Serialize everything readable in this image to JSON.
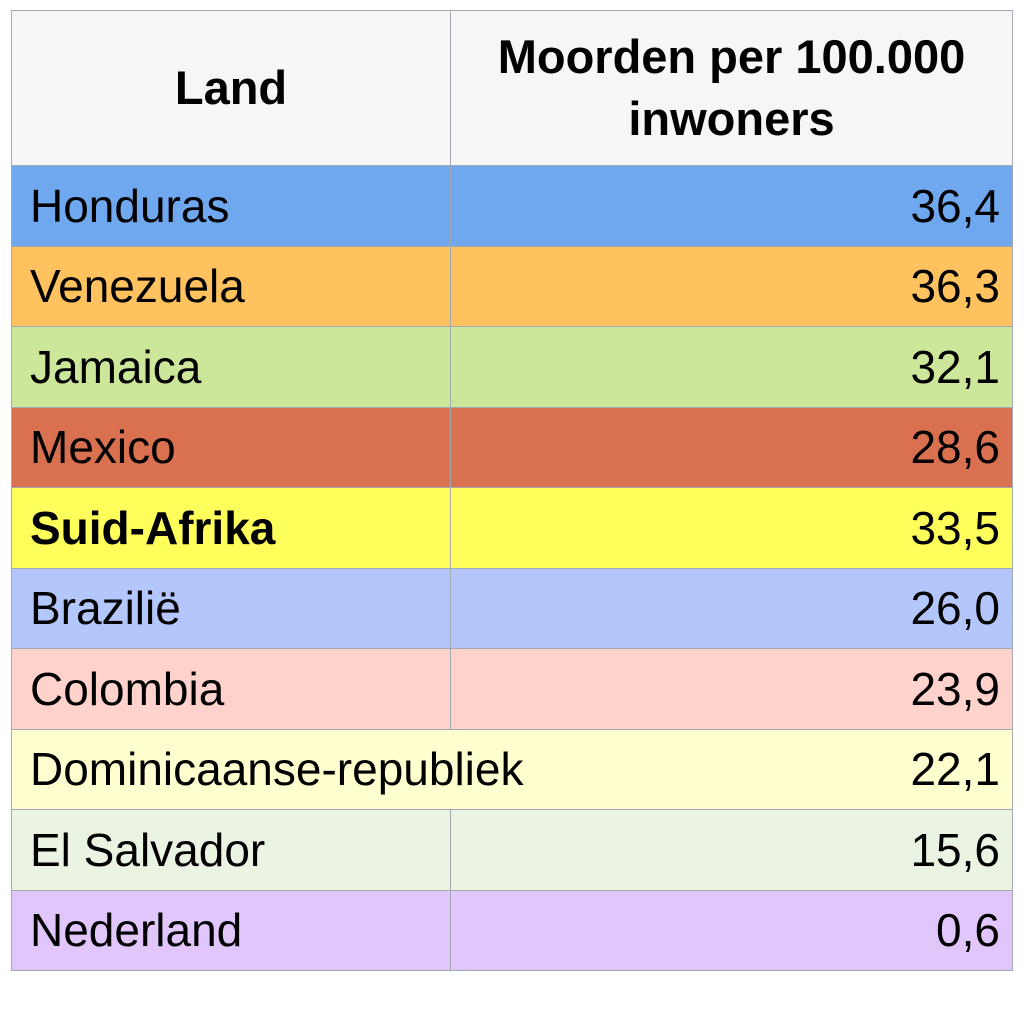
{
  "chart_data": {
    "type": "table",
    "columns": [
      "Land",
      "Moorden per 100.000 inwoners"
    ],
    "rows": [
      {
        "land": "Honduras",
        "value": "36,4",
        "color": "#6fa8ef"
      },
      {
        "land": "Venezuela",
        "value": "36,3",
        "color": "#ffc25e"
      },
      {
        "land": "Jamaica",
        "value": "32,1",
        "color": "#cde79a"
      },
      {
        "land": "Mexico",
        "value": "28,6",
        "color": "#d9704f"
      },
      {
        "land": "Suid-Afrika",
        "value": "33,5",
        "color": "#ffff5c",
        "bold": true
      },
      {
        "land": "Brazilië",
        "value": "26,0",
        "color": "#b4c7fd"
      },
      {
        "land": "Colombia",
        "value": "23,9",
        "color": "#ffd3cc"
      },
      {
        "land": "Dominicaanse-republiek",
        "value": "22,1",
        "color": "#ffffcf",
        "overflow": true
      },
      {
        "land": "El Salvador",
        "value": "15,6",
        "color": "#ebf4e2"
      },
      {
        "land": "Nederland",
        "value": "0,6",
        "color": "#e1c6fc"
      }
    ]
  }
}
